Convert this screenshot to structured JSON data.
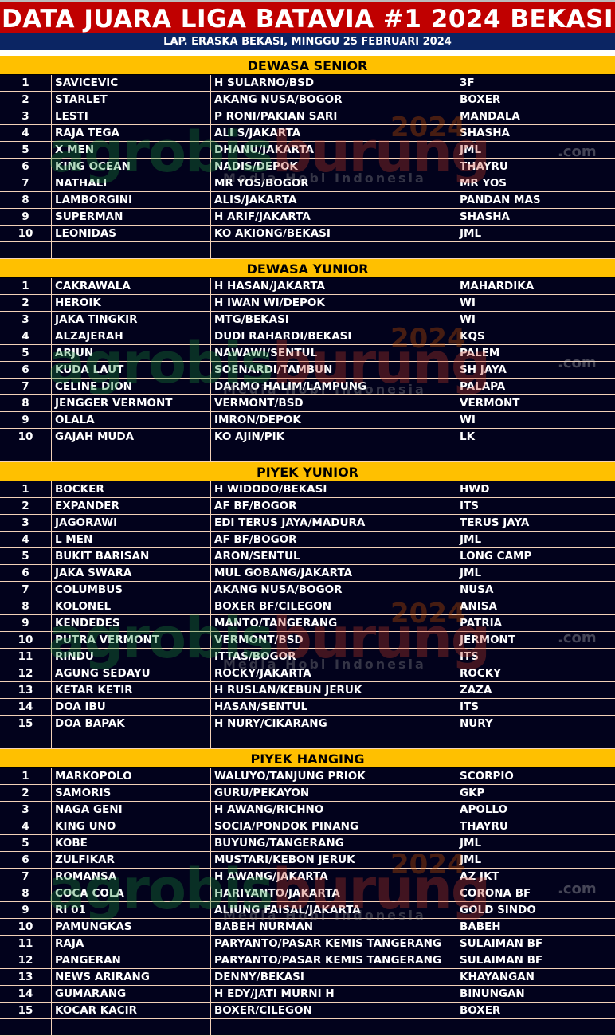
{
  "title": "DATA JUARA LIGA BATAVIA #1 2024 BEKASI",
  "subtitle": "LAP. ERASKA BEKASI, MINGGU 25 FEBRUARI 2024",
  "watermark": {
    "brand_a": "agrobis",
    "brand_b": "burung",
    "domain": ".com",
    "year": "2024",
    "tagline": "Media Hobi Indonesia"
  },
  "colors": {
    "title_bg": "#c00000",
    "subtitle_bg": "#0b2563",
    "section_bg": "#ffc000",
    "row_bg": "#02021c",
    "grid": "#f3d2b8"
  },
  "sections": [
    {
      "title": "DEWASA SENIOR",
      "rows": [
        [
          "1",
          "SAVICEVIC",
          "H SULARNO/BSD",
          "3F"
        ],
        [
          "2",
          "STARLET",
          "AKANG NUSA/BOGOR",
          "BOXER"
        ],
        [
          "3",
          "LESTI",
          "P RONI/PAKIAN SARI",
          "MANDALA"
        ],
        [
          "4",
          "RAJA TEGA",
          "ALI S/JAKARTA",
          "SHASHA"
        ],
        [
          "5",
          "X MEN",
          "DHANU/JAKARTA",
          "JML"
        ],
        [
          "6",
          "KING OCEAN",
          "NADIS/DEPOK",
          "THAYRU"
        ],
        [
          "7",
          "NATHALI",
          "MR YOS/BOGOR",
          "MR YOS"
        ],
        [
          "8",
          "LAMBORGINI",
          "ALIS/JAKARTA",
          "PANDAN MAS"
        ],
        [
          "9",
          "SUPERMAN",
          "H ARIF/JAKARTA",
          "SHASHA"
        ],
        [
          "10",
          "LEONIDAS",
          "KO AKIONG/BEKASI",
          "JML"
        ]
      ]
    },
    {
      "title": "DEWASA YUNIOR",
      "rows": [
        [
          "1",
          "CAKRAWALA",
          "H HASAN/JAKARTA",
          "MAHARDIKA"
        ],
        [
          "2",
          "HEROIK",
          "H IWAN WI/DEPOK",
          "WI"
        ],
        [
          "3",
          "JAKA TINGKIR",
          "MTG/BEKASI",
          "WI"
        ],
        [
          "4",
          "ALZAJERAH",
          "DUDI RAHARDI/BEKASI",
          "KQS"
        ],
        [
          "5",
          "ARJUN",
          "NAWAWI/SENTUL",
          "PALEM"
        ],
        [
          "6",
          "KUDA LAUT",
          "SOENARDI/TAMBUN",
          "SH JAYA"
        ],
        [
          "7",
          "CELINE DION",
          "DARMO HALIM/LAMPUNG",
          "PALAPA"
        ],
        [
          "8",
          "JENGGER VERMONT",
          "VERMONT/BSD",
          "VERMONT"
        ],
        [
          "9",
          "OLALA",
          "IMRON/DEPOK",
          "WI"
        ],
        [
          "10",
          "GAJAH MUDA",
          "KO AJIN/PIK",
          "LK"
        ]
      ]
    },
    {
      "title": "PIYEK YUNIOR",
      "rows": [
        [
          "1",
          "BOCKER",
          "H WIDODO/BEKASI",
          "HWD"
        ],
        [
          "2",
          "EXPANDER",
          "AF BF/BOGOR",
          "ITS"
        ],
        [
          "3",
          "JAGORAWI",
          "EDI TERUS JAYA/MADURA",
          "TERUS JAYA"
        ],
        [
          "4",
          "L MEN",
          "AF BF/BOGOR",
          "JML"
        ],
        [
          "5",
          "BUKIT BARISAN",
          "ARON/SENTUL",
          "LONG CAMP"
        ],
        [
          "6",
          "JAKA SWARA",
          "MUL GOBANG/JAKARTA",
          "JML"
        ],
        [
          "7",
          "COLUMBUS",
          "AKANG NUSA/BOGOR",
          "NUSA"
        ],
        [
          "8",
          "KOLONEL",
          "BOXER BF/CILEGON",
          "ANISA"
        ],
        [
          "9",
          "KENDEDES",
          "MANTO/TANGERANG",
          "PATRIA"
        ],
        [
          "10",
          "PUTRA VERMONT",
          "VERMONT/BSD",
          "JERMONT"
        ],
        [
          "11",
          "RINDU",
          "ITTAS/BOGOR",
          "ITS"
        ],
        [
          "12",
          "AGUNG SEDAYU",
          "ROCKY/JAKARTA",
          "ROCKY"
        ],
        [
          "13",
          "KETAR KETIR",
          "H RUSLAN/KEBUN JERUK",
          "ZAZA"
        ],
        [
          "14",
          "DOA IBU",
          "HASAN/SENTUL",
          "ITS"
        ],
        [
          "15",
          "DOA BAPAK",
          "H NURY/CIKARANG",
          "NURY"
        ]
      ]
    },
    {
      "title": "PIYEK HANGING",
      "rows": [
        [
          "1",
          "MARKOPOLO",
          "WALUYO/TANJUNG PRIOK",
          "SCORPIO"
        ],
        [
          "2",
          "SAMORIS",
          "GURU/PEKAYON",
          "GKP"
        ],
        [
          "3",
          "NAGA GENI",
          "H AWANG/RICHNO",
          "APOLLO"
        ],
        [
          "4",
          "KING UNO",
          "SOCIA/PONDOK PINANG",
          "THAYRU"
        ],
        [
          "5",
          "KOBE",
          "BUYUNG/TANGERANG",
          "JML"
        ],
        [
          "6",
          "ZULFIKAR",
          "MUSTARI/KEBON JERUK",
          "JML"
        ],
        [
          "7",
          "ROMANSA",
          "H AWANG/JAKARTA",
          "AZ JKT"
        ],
        [
          "8",
          "COCA COLA",
          "HARIYANTO/JAKARTA",
          "CORONA BF"
        ],
        [
          "9",
          "RI 01",
          "ALIUNG FAISAL/JAKARTA",
          "GOLD SINDO"
        ],
        [
          "10",
          "PAMUNGKAS",
          "BABEH NURMAN",
          "BABEH"
        ],
        [
          "11",
          "RAJA",
          "PARYANTO/PASAR KEMIS TANGERANG",
          "SULAIMAN BF"
        ],
        [
          "12",
          "PANGERAN",
          "PARYANTO/PASAR KEMIS TANGERANG",
          "SULAIMAN BF"
        ],
        [
          "13",
          "NEWS ARIRANG",
          "DENNY/BEKASI",
          "KHAYANGAN"
        ],
        [
          "14",
          "GUMARANG",
          "H EDY/JATI MURNI H",
          "BINUNGAN"
        ],
        [
          "15",
          "KOCAR KACIR",
          "BOXER/CILEGON",
          "BOXER"
        ]
      ]
    }
  ]
}
